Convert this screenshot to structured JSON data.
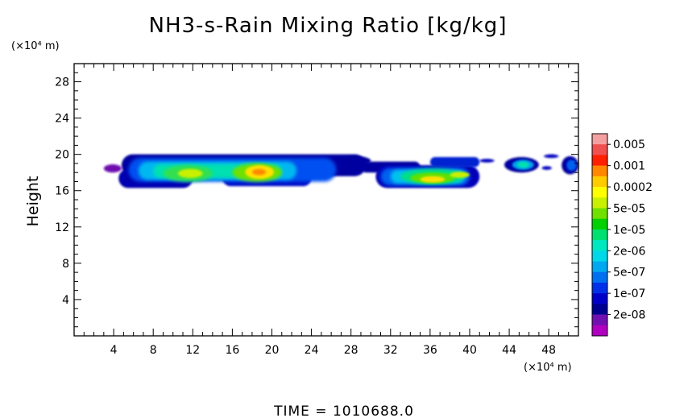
{
  "chart_data": {
    "type": "heatmap",
    "title": "NH3-s-Rain Mixing Ratio [kg/kg]",
    "ylabel": "Height",
    "xlabel": "",
    "x_unit": "(×10⁴ m)",
    "y_unit": "(×10⁴ m)",
    "xlim": [
      0,
      51
    ],
    "ylim": [
      0,
      30
    ],
    "x_ticks": [
      "4",
      "8",
      "12",
      "16",
      "20",
      "24",
      "28",
      "32",
      "36",
      "40",
      "44",
      "48"
    ],
    "y_ticks": [
      "4",
      "8",
      "12",
      "16",
      "20",
      "24",
      "28"
    ],
    "colorbar": {
      "labels": [
        "0.005",
        "0.001",
        "0.0002",
        "5e-05",
        "1e-05",
        "2e-06",
        "5e-07",
        "1e-07",
        "2e-08"
      ],
      "colors_top_to_bottom": [
        "#f5a0a0",
        "#f05050",
        "#ff2000",
        "#ff8800",
        "#ffcc00",
        "#ffff00",
        "#c8f000",
        "#70e000",
        "#00d000",
        "#00e070",
        "#00e8c0",
        "#00d8e8",
        "#00a8f0",
        "#0070f0",
        "#0030e8",
        "#0000c8",
        "#000090",
        "#7010b0",
        "#b000c0"
      ]
    },
    "cloud_layers": [
      {
        "name": "",
        "x_range": [
          4.5,
          30
        ],
        "y_range": [
          16.3,
          20
        ],
        "peak_value": "0.0002"
      },
      {
        "name": "",
        "x_range": [
          29,
          41
        ],
        "y_range": [
          16.3,
          19.8
        ],
        "peak_value": "5e-05"
      },
      {
        "name": "",
        "x_range": [
          43.5,
          51
        ],
        "y_range": [
          17.8,
          20
        ],
        "peak_value": "1e-06"
      }
    ],
    "grid": false,
    "legend": "right"
  },
  "footer": {
    "time_label": "TIME = 1010688.0"
  }
}
